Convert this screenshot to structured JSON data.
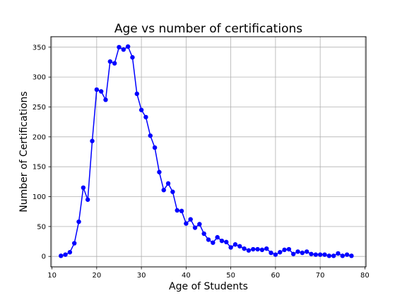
{
  "chart_data": {
    "type": "line",
    "title": "Age vs number of certifications",
    "xlabel": "Age of Students",
    "ylabel": "Number of Certifications",
    "xlim": [
      9.75,
      80.25
    ],
    "ylim": [
      -17.5,
      367.5
    ],
    "xticks": [
      10,
      20,
      30,
      40,
      50,
      60,
      70,
      80
    ],
    "yticks": [
      0,
      50,
      100,
      150,
      200,
      250,
      300,
      350
    ],
    "grid": true,
    "marker": "circle",
    "color": "#0000ff",
    "x": [
      12,
      13,
      14,
      15,
      16,
      17,
      18,
      19,
      20,
      21,
      22,
      23,
      24,
      25,
      26,
      27,
      28,
      29,
      30,
      31,
      32,
      33,
      34,
      35,
      36,
      37,
      38,
      39,
      40,
      41,
      42,
      43,
      44,
      45,
      46,
      47,
      48,
      49,
      50,
      51,
      52,
      53,
      54,
      55,
      56,
      57,
      58,
      59,
      60,
      61,
      62,
      63,
      64,
      65,
      66,
      67,
      68,
      69,
      70,
      71,
      72,
      73,
      74,
      75,
      76,
      77
    ],
    "y": [
      1,
      3,
      7,
      22,
      58,
      115,
      95,
      193,
      279,
      276,
      262,
      326,
      323,
      350,
      346,
      351,
      333,
      272,
      245,
      233,
      202,
      182,
      141,
      111,
      122,
      108,
      77,
      76,
      55,
      62,
      48,
      54,
      38,
      28,
      23,
      32,
      26,
      24,
      15,
      20,
      17,
      13,
      10,
      12,
      12,
      11,
      13,
      6,
      3,
      7,
      11,
      12,
      4,
      8,
      6,
      8,
      4,
      3,
      3,
      3,
      1,
      1,
      5,
      1,
      3,
      1
    ]
  }
}
